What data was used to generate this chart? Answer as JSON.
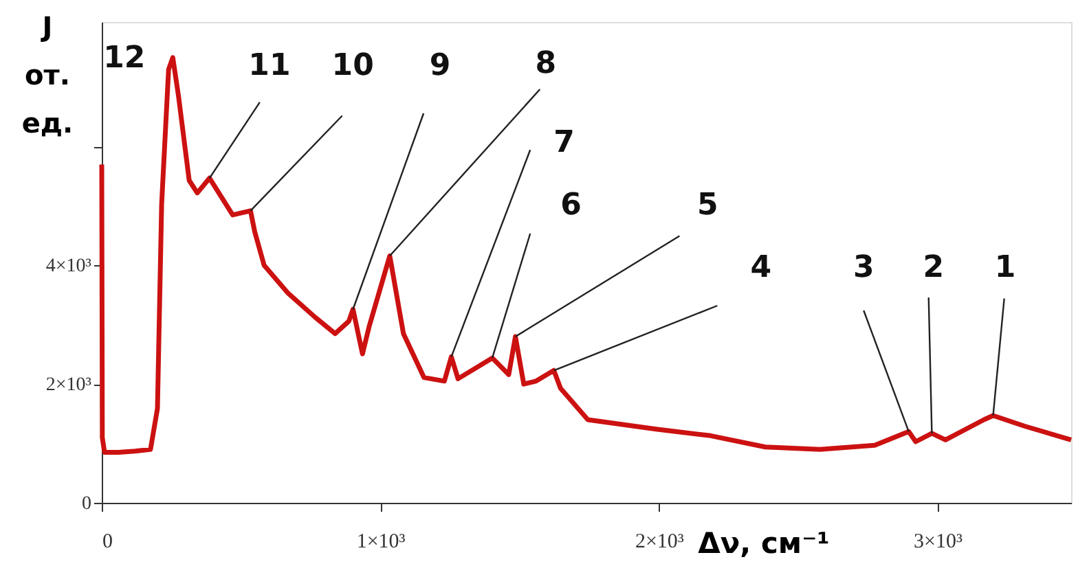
{
  "chart_data": {
    "type": "line",
    "xlabel": "Δν, см⁻¹",
    "ylabel": "J от. ед.",
    "x": [
      0,
      2,
      10,
      60,
      120,
      175,
      200,
      215,
      240,
      255,
      275,
      314,
      343,
      387,
      470,
      534,
      549,
      583,
      667,
      765,
      838,
      887,
      902,
      936,
      960,
      1034,
      1083,
      1157,
      1230,
      1255,
      1279,
      1402,
      1461,
      1485,
      1515,
      1559,
      1623,
      1647,
      1745,
      1990,
      2186,
      2382,
      2578,
      2775,
      2897,
      2922,
      2980,
      3029,
      3167,
      3200,
      3314,
      3480
    ],
    "series": [
      {
        "color": "#cc1111",
        "values": [
          5700,
          1100,
          850,
          850,
          870,
          900,
          1590,
          5030,
          7300,
          7500,
          6870,
          5430,
          5220,
          5470,
          4850,
          4920,
          4570,
          4000,
          3540,
          3130,
          2850,
          3060,
          3260,
          2510,
          2970,
          4160,
          2850,
          2110,
          2050,
          2460,
          2090,
          2440,
          2160,
          2800,
          2000,
          2050,
          2230,
          1930,
          1400,
          1240,
          1130,
          940,
          900,
          970,
          1200,
          1030,
          1170,
          1060,
          1400,
          1470,
          1290,
          1060
        ]
      }
    ],
    "xlim": [
      0,
      3480
    ],
    "ylim": [
      0,
      8100
    ],
    "xticks": [
      0,
      {
        "value": 1000,
        "label": "1×10³"
      },
      {
        "value": 2000,
        "label": "2×10³"
      },
      {
        "value": 3000,
        "label": "3×10³"
      }
    ],
    "yticks": [
      0,
      {
        "value": 2000,
        "label": "2×10³"
      },
      {
        "value": 4000,
        "label": "4×10³"
      },
      {
        "value": 6000,
        "label": null
      }
    ],
    "grid": false,
    "marker": "none",
    "line_style": "solid",
    "annotations": [
      {
        "text": "12",
        "x": 255,
        "y": 7500
      },
      {
        "text": "11",
        "x": 387,
        "y": 5470
      },
      {
        "text": "10",
        "x": 534,
        "y": 4920
      },
      {
        "text": "9",
        "x": 902,
        "y": 3260
      },
      {
        "text": "8",
        "x": 1034,
        "y": 4160
      },
      {
        "text": "7",
        "x": 1255,
        "y": 2460
      },
      {
        "text": "6",
        "x": 1402,
        "y": 2440
      },
      {
        "text": "5",
        "x": 1485,
        "y": 2800
      },
      {
        "text": "4",
        "x": 1623,
        "y": 2230
      },
      {
        "text": "3",
        "x": 2897,
        "y": 1200
      },
      {
        "text": "2",
        "x": 2980,
        "y": 1170
      },
      {
        "text": "1",
        "x": 3200,
        "y": 1470
      }
    ]
  }
}
